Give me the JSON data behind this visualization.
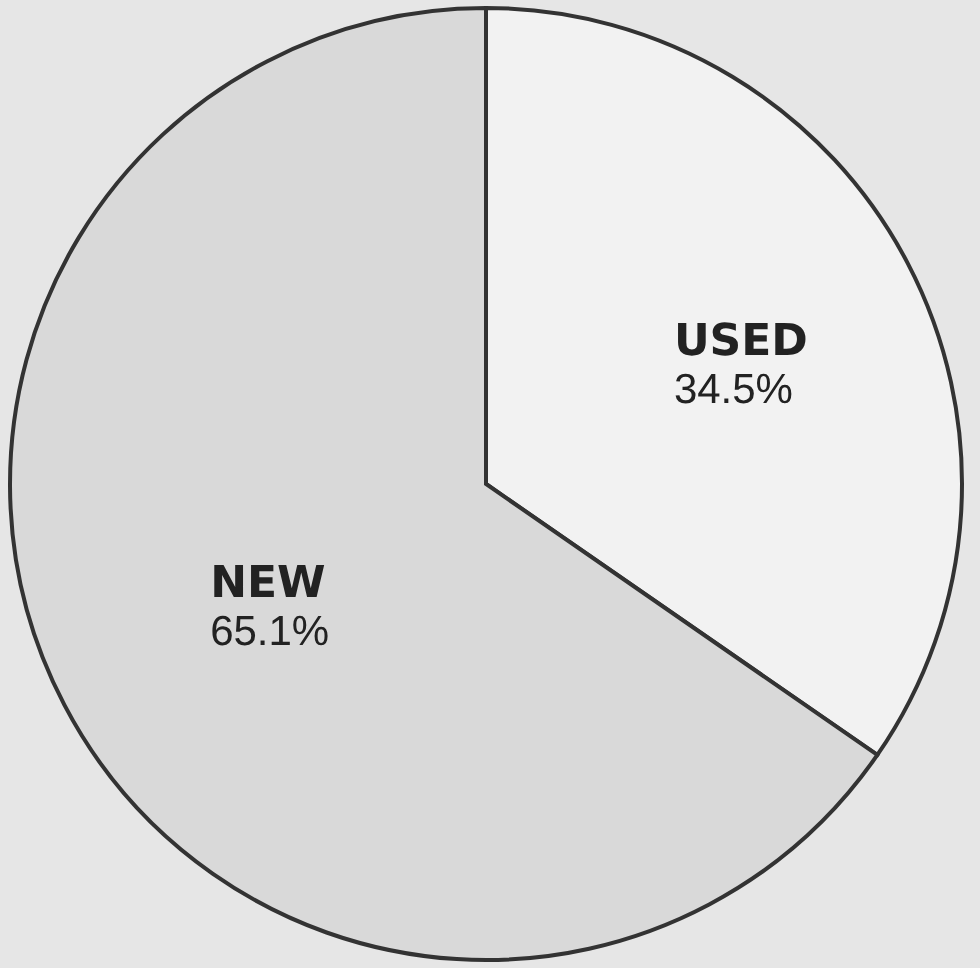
{
  "chart_data": {
    "type": "pie",
    "categories": [
      "USED",
      "NEW"
    ],
    "values": [
      34.5,
      65.1
    ],
    "colors": [
      "#f2f2f2",
      "#d9d9d9"
    ],
    "value_labels": [
      "34.5%",
      "65.1%"
    ]
  }
}
